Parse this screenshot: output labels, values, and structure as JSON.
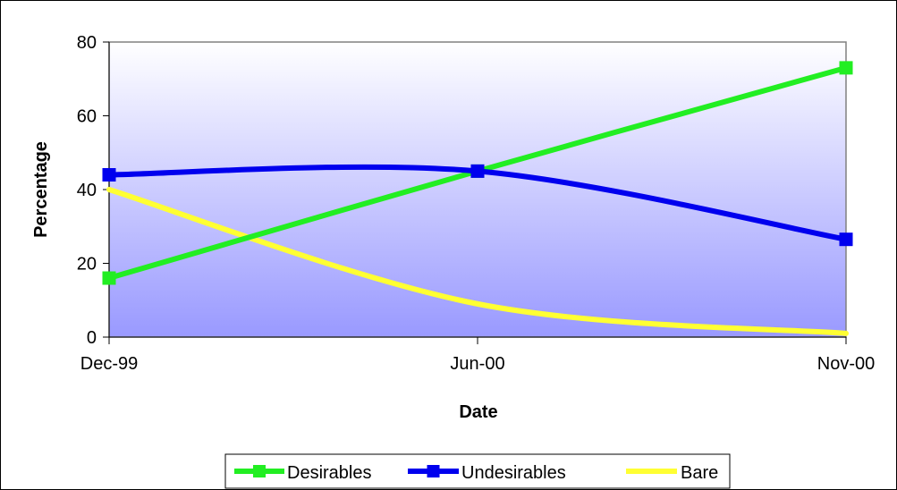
{
  "chart_data": {
    "type": "line",
    "categories": [
      "Dec-99",
      "Jun-00",
      "Nov-00"
    ],
    "series": [
      {
        "name": "Desirables",
        "values": [
          16,
          45,
          73
        ],
        "color": "#22ee22",
        "marker": "square"
      },
      {
        "name": "Undesirables",
        "values": [
          44,
          45,
          26.5
        ],
        "color": "#0000ee",
        "marker": "square"
      },
      {
        "name": "Bare",
        "values": [
          40,
          9,
          1
        ],
        "color": "#ffff33",
        "marker": "none"
      }
    ],
    "title": "",
    "xlabel": "Date",
    "ylabel": "Percentage",
    "ylim": [
      0,
      80
    ],
    "yticks": [
      "0",
      "20",
      "40",
      "60",
      "80"
    ],
    "smoothed": true,
    "grid": false,
    "legend_position": "bottom",
    "plot_background": "gradient-white-to-blue",
    "colors": {
      "plot_top": "#ffffff",
      "plot_bottom": "#9999ff"
    }
  }
}
